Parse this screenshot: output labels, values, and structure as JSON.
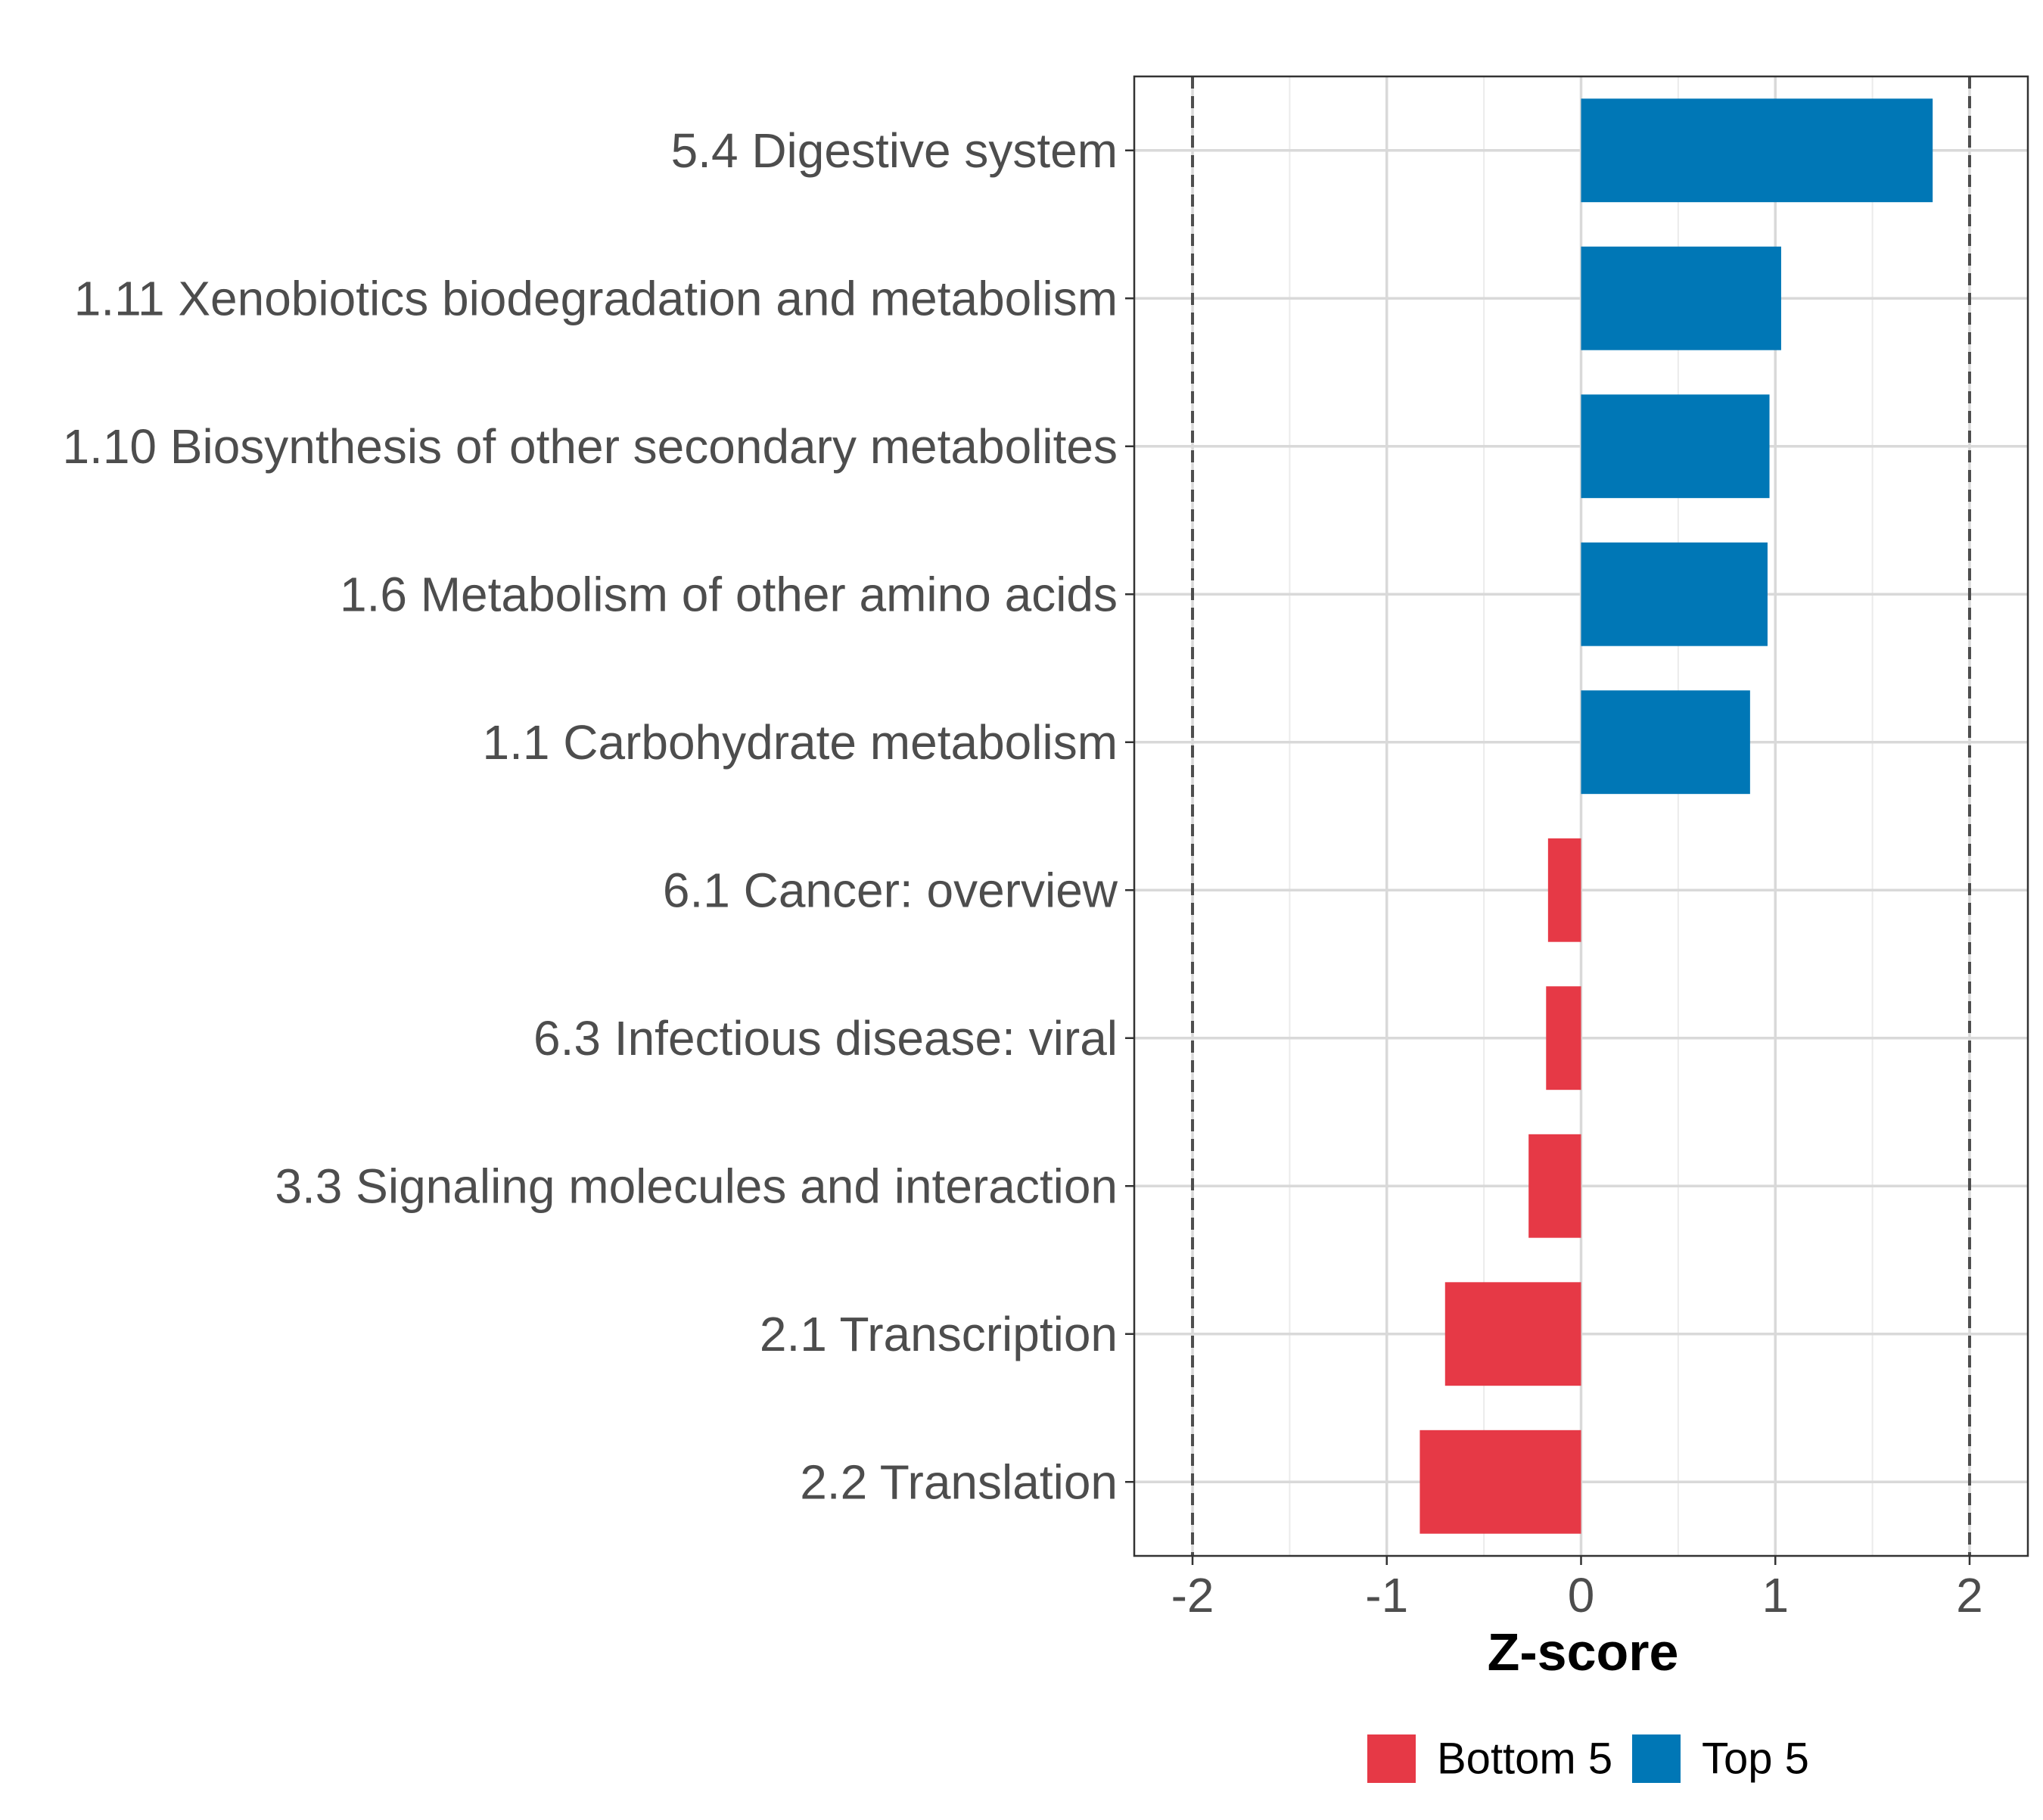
{
  "chart_data": {
    "type": "bar",
    "orientation": "horizontal",
    "categories": [
      "5.4 Digestive system",
      "1.11 Xenobiotics biodegradation and metabolism",
      "1.10 Biosynthesis of other secondary metabolites",
      "1.6 Metabolism of other amino acids",
      "1.1 Carbohydrate metabolism",
      "6.1 Cancer: overview",
      "6.3 Infectious disease: viral",
      "3.3 Signaling molecules and interaction",
      "2.1 Transcription",
      "2.2 Translation"
    ],
    "values": [
      1.81,
      1.03,
      0.97,
      0.96,
      0.87,
      -0.17,
      -0.18,
      -0.27,
      -0.7,
      -0.83
    ],
    "groups": [
      "Top 5",
      "Top 5",
      "Top 5",
      "Top 5",
      "Top 5",
      "Bottom 5",
      "Bottom 5",
      "Bottom 5",
      "Bottom 5",
      "Bottom 5"
    ],
    "xlabel": "Z-score",
    "ylabel": "",
    "xlim": [
      -2.3,
      2.3
    ],
    "xticks": [
      -2,
      -1,
      0,
      1,
      2
    ],
    "xtick_labels": [
      "-2",
      "-1",
      "0",
      "1",
      "2"
    ],
    "reference_lines": [
      -2,
      2
    ],
    "grid": true,
    "legend": {
      "placement": "bottom",
      "entries": [
        {
          "label": "Bottom 5",
          "color": "#e63946"
        },
        {
          "label": "Top 5",
          "color": "#0077b6"
        }
      ]
    },
    "colors": {
      "Top 5": "#0077b6",
      "Bottom 5": "#e63946"
    }
  }
}
